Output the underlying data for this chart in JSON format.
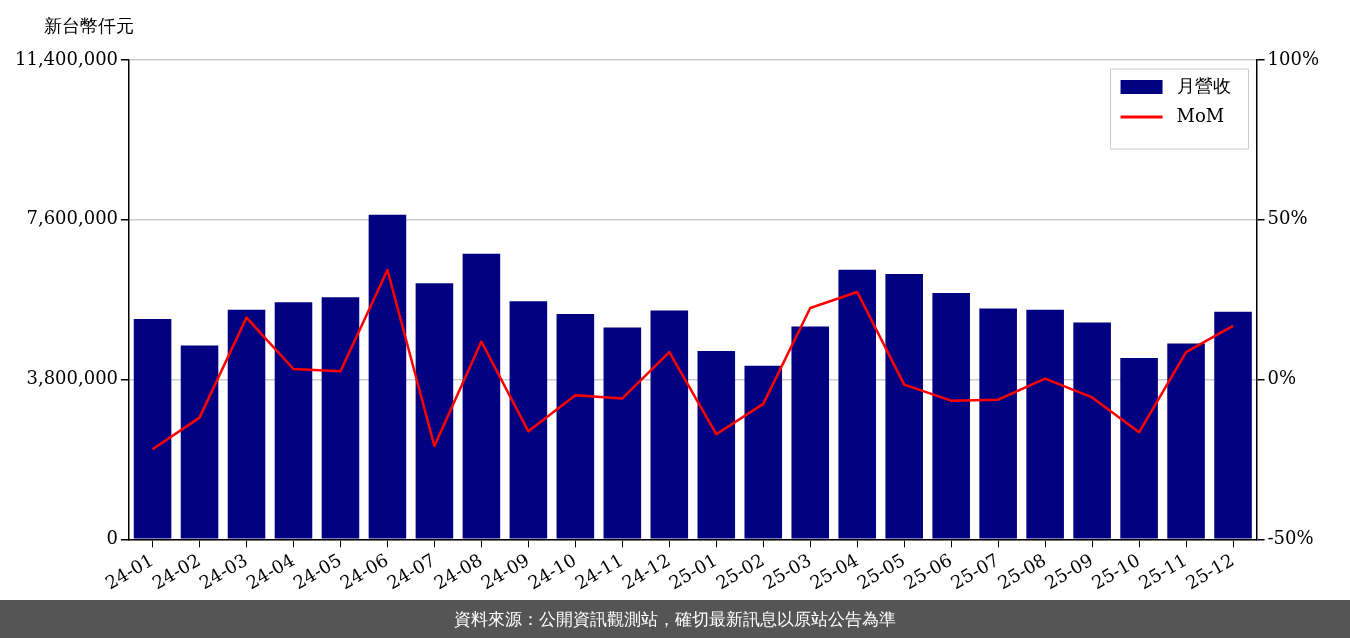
{
  "chart_data": {
    "type": "bar",
    "ylabel": "新台幣仟元",
    "categories": [
      "24-01",
      "24-02",
      "24-03",
      "24-04",
      "24-05",
      "24-06",
      "24-07",
      "24-08",
      "24-09",
      "24-10",
      "24-11",
      "24-12",
      "25-01",
      "25-02",
      "25-03",
      "25-04",
      "25-05",
      "25-06",
      "25-07",
      "25-08",
      "25-09",
      "25-10",
      "25-11",
      "25-12"
    ],
    "series": [
      {
        "name": "月營收",
        "color": "#000080",
        "values": [
          5240000,
          4610000,
          5460000,
          5640000,
          5760000,
          7720000,
          6090000,
          6790000,
          5660000,
          5360000,
          5040000,
          5440000,
          4480000,
          4130000,
          5060000,
          6410000,
          6310000,
          5860000,
          5490000,
          5460000,
          5160000,
          4310000,
          4660000,
          5410000
        ]
      },
      {
        "name": "MoM",
        "type": "line",
        "axis": "y2",
        "color": "#ff0000",
        "values": [
          -21.8,
          -11.9,
          19.4,
          3.3,
          2.6,
          34.3,
          -20.8,
          11.9,
          -16.2,
          -4.9,
          -5.9,
          8.6,
          -17.1,
          -7.6,
          22.4,
          27.4,
          -1.6,
          -6.6,
          -6.3,
          0.3,
          -5.6,
          -16.5,
          8.6,
          16.8
        ]
      }
    ],
    "ylim": [
      0,
      11400000
    ],
    "yticks": [
      {
        "value": 0,
        "label": "0"
      },
      {
        "value": 3800000,
        "label": "3,800,000"
      },
      {
        "value": 7600000,
        "label": "7,600,000"
      },
      {
        "value": 11400000,
        "label": "11,400,000"
      }
    ],
    "y2lim": [
      -50,
      100
    ],
    "y2ticks": [
      {
        "value": -50,
        "label": "-50%"
      },
      {
        "value": 0,
        "label": "0%"
      },
      {
        "value": 50,
        "label": "50%"
      },
      {
        "value": 100,
        "label": "100%"
      }
    ],
    "grid": "y",
    "legend": "top right",
    "marker": "none",
    "line_style": "solid",
    "annotations": [
      "資料來源：公開資訊觀測站，確切最新訊息以原站公告為準"
    ]
  }
}
